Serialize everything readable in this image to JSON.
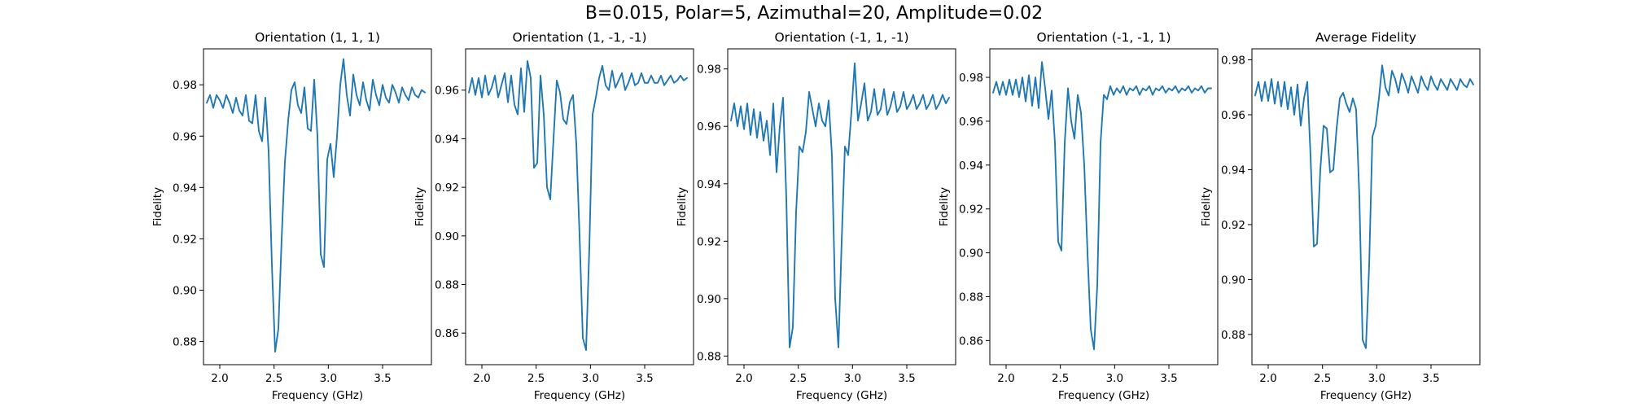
{
  "figure": {
    "suptitle": "B=0.015, Polar=5, Azimuthal=20, Amplitude=0.02"
  },
  "colors": {
    "line": "#1f77b4",
    "axes": "#000000"
  },
  "chart_data": [
    {
      "type": "line",
      "title": "Orientation (1, 1, 1)",
      "xlabel": "Frequency (GHz)",
      "ylabel": "Fidelity",
      "xlim": [
        1.85,
        3.95
      ],
      "ylim": [
        0.871,
        0.994
      ],
      "xticks": [
        2.0,
        2.5,
        3.0,
        3.5
      ],
      "yticks": [
        0.88,
        0.9,
        0.92,
        0.94,
        0.96,
        0.98
      ],
      "ytick_decimals": 2,
      "series": [
        {
          "x": [
            1.88,
            1.91,
            1.94,
            1.97,
            2.0,
            2.03,
            2.06,
            2.09,
            2.12,
            2.15,
            2.18,
            2.21,
            2.24,
            2.27,
            2.3,
            2.33,
            2.36,
            2.39,
            2.42,
            2.45,
            2.48,
            2.51,
            2.54,
            2.57,
            2.6,
            2.63,
            2.66,
            2.69,
            2.72,
            2.75,
            2.78,
            2.81,
            2.84,
            2.87,
            2.9,
            2.93,
            2.96,
            2.99,
            3.02,
            3.05,
            3.08,
            3.11,
            3.14,
            3.17,
            3.2,
            3.23,
            3.26,
            3.29,
            3.32,
            3.35,
            3.38,
            3.41,
            3.44,
            3.47,
            3.5,
            3.53,
            3.56,
            3.59,
            3.62,
            3.65,
            3.68,
            3.71,
            3.74,
            3.77,
            3.8,
            3.83,
            3.86,
            3.89
          ],
          "y": [
            0.973,
            0.976,
            0.971,
            0.976,
            0.974,
            0.971,
            0.976,
            0.973,
            0.969,
            0.975,
            0.97,
            0.968,
            0.976,
            0.966,
            0.965,
            0.976,
            0.962,
            0.958,
            0.975,
            0.954,
            0.91,
            0.876,
            0.885,
            0.92,
            0.95,
            0.966,
            0.978,
            0.981,
            0.972,
            0.969,
            0.979,
            0.963,
            0.962,
            0.982,
            0.96,
            0.914,
            0.909,
            0.951,
            0.957,
            0.944,
            0.96,
            0.98,
            0.99,
            0.976,
            0.968,
            0.984,
            0.976,
            0.972,
            0.981,
            0.974,
            0.97,
            0.982,
            0.976,
            0.972,
            0.98,
            0.975,
            0.973,
            0.98,
            0.977,
            0.973,
            0.979,
            0.976,
            0.974,
            0.979,
            0.976,
            0.975,
            0.978,
            0.977
          ]
        }
      ]
    },
    {
      "type": "line",
      "title": "Orientation (1, -1, -1)",
      "xlabel": "Frequency (GHz)",
      "ylabel": "Fidelity",
      "xlim": [
        1.85,
        3.95
      ],
      "ylim": [
        0.847,
        0.977
      ],
      "xticks": [
        2.0,
        2.5,
        3.0,
        3.5
      ],
      "yticks": [
        0.86,
        0.88,
        0.9,
        0.92,
        0.94,
        0.96
      ],
      "ytick_decimals": 2,
      "series": [
        {
          "x": [
            1.88,
            1.91,
            1.94,
            1.97,
            2.0,
            2.03,
            2.06,
            2.09,
            2.12,
            2.15,
            2.18,
            2.21,
            2.24,
            2.27,
            2.3,
            2.33,
            2.36,
            2.39,
            2.42,
            2.45,
            2.48,
            2.51,
            2.54,
            2.57,
            2.6,
            2.63,
            2.66,
            2.69,
            2.72,
            2.75,
            2.78,
            2.81,
            2.84,
            2.87,
            2.9,
            2.93,
            2.96,
            2.99,
            3.02,
            3.05,
            3.08,
            3.11,
            3.14,
            3.17,
            3.2,
            3.23,
            3.26,
            3.29,
            3.32,
            3.35,
            3.38,
            3.41,
            3.44,
            3.47,
            3.5,
            3.53,
            3.56,
            3.59,
            3.62,
            3.65,
            3.68,
            3.71,
            3.74,
            3.77,
            3.8,
            3.83,
            3.86,
            3.89
          ],
          "y": [
            0.959,
            0.965,
            0.958,
            0.965,
            0.957,
            0.966,
            0.958,
            0.961,
            0.966,
            0.957,
            0.962,
            0.967,
            0.955,
            0.966,
            0.954,
            0.95,
            0.969,
            0.951,
            0.972,
            0.965,
            0.928,
            0.93,
            0.966,
            0.95,
            0.92,
            0.915,
            0.94,
            0.964,
            0.959,
            0.948,
            0.946,
            0.955,
            0.958,
            0.938,
            0.9,
            0.858,
            0.853,
            0.895,
            0.95,
            0.957,
            0.965,
            0.97,
            0.962,
            0.96,
            0.968,
            0.961,
            0.964,
            0.967,
            0.96,
            0.963,
            0.967,
            0.962,
            0.963,
            0.967,
            0.963,
            0.963,
            0.966,
            0.963,
            0.963,
            0.966,
            0.962,
            0.964,
            0.966,
            0.963,
            0.964,
            0.966,
            0.964,
            0.965
          ]
        }
      ]
    },
    {
      "type": "line",
      "title": "Orientation (-1, 1, -1)",
      "xlabel": "Frequency (GHz)",
      "ylabel": "Fidelity",
      "xlim": [
        1.85,
        3.95
      ],
      "ylim": [
        0.877,
        0.987
      ],
      "xticks": [
        2.0,
        2.5,
        3.0,
        3.5
      ],
      "yticks": [
        0.88,
        0.9,
        0.92,
        0.94,
        0.96,
        0.98
      ],
      "ytick_decimals": 2,
      "series": [
        {
          "x": [
            1.88,
            1.91,
            1.94,
            1.97,
            2.0,
            2.03,
            2.06,
            2.09,
            2.12,
            2.15,
            2.18,
            2.21,
            2.24,
            2.27,
            2.3,
            2.33,
            2.36,
            2.39,
            2.42,
            2.45,
            2.48,
            2.51,
            2.54,
            2.57,
            2.6,
            2.63,
            2.66,
            2.69,
            2.72,
            2.75,
            2.78,
            2.81,
            2.84,
            2.87,
            2.9,
            2.93,
            2.96,
            2.99,
            3.02,
            3.05,
            3.08,
            3.11,
            3.14,
            3.17,
            3.2,
            3.23,
            3.26,
            3.29,
            3.32,
            3.35,
            3.38,
            3.41,
            3.44,
            3.47,
            3.5,
            3.53,
            3.56,
            3.59,
            3.62,
            3.65,
            3.68,
            3.71,
            3.74,
            3.77,
            3.8,
            3.83,
            3.86,
            3.89
          ],
          "y": [
            0.962,
            0.968,
            0.96,
            0.967,
            0.959,
            0.968,
            0.957,
            0.966,
            0.956,
            0.965,
            0.955,
            0.962,
            0.95,
            0.968,
            0.944,
            0.96,
            0.97,
            0.935,
            0.883,
            0.89,
            0.93,
            0.953,
            0.951,
            0.958,
            0.972,
            0.966,
            0.96,
            0.968,
            0.962,
            0.96,
            0.969,
            0.95,
            0.9,
            0.883,
            0.92,
            0.953,
            0.95,
            0.965,
            0.982,
            0.962,
            0.968,
            0.975,
            0.962,
            0.965,
            0.973,
            0.964,
            0.966,
            0.973,
            0.964,
            0.967,
            0.972,
            0.965,
            0.967,
            0.972,
            0.966,
            0.968,
            0.971,
            0.966,
            0.968,
            0.971,
            0.966,
            0.968,
            0.971,
            0.966,
            0.968,
            0.971,
            0.968,
            0.97
          ]
        }
      ]
    },
    {
      "type": "line",
      "title": "Orientation (-1, -1, 1)",
      "xlabel": "Frequency (GHz)",
      "ylabel": "Fidelity",
      "xlim": [
        1.85,
        3.95
      ],
      "ylim": [
        0.849,
        0.993
      ],
      "xticks": [
        2.0,
        2.5,
        3.0,
        3.5
      ],
      "yticks": [
        0.86,
        0.88,
        0.9,
        0.92,
        0.94,
        0.96,
        0.98
      ],
      "ytick_decimals": 2,
      "series": [
        {
          "x": [
            1.88,
            1.91,
            1.94,
            1.97,
            2.0,
            2.03,
            2.06,
            2.09,
            2.12,
            2.15,
            2.18,
            2.21,
            2.24,
            2.27,
            2.3,
            2.33,
            2.36,
            2.39,
            2.42,
            2.45,
            2.48,
            2.51,
            2.54,
            2.57,
            2.6,
            2.63,
            2.66,
            2.69,
            2.72,
            2.75,
            2.78,
            2.81,
            2.84,
            2.87,
            2.9,
            2.93,
            2.96,
            2.99,
            3.02,
            3.05,
            3.08,
            3.11,
            3.14,
            3.17,
            3.2,
            3.23,
            3.26,
            3.29,
            3.32,
            3.35,
            3.38,
            3.41,
            3.44,
            3.47,
            3.5,
            3.53,
            3.56,
            3.59,
            3.62,
            3.65,
            3.68,
            3.71,
            3.74,
            3.77,
            3.8,
            3.83,
            3.86,
            3.89
          ],
          "y": [
            0.973,
            0.978,
            0.972,
            0.978,
            0.972,
            0.979,
            0.972,
            0.979,
            0.971,
            0.98,
            0.969,
            0.981,
            0.967,
            0.98,
            0.966,
            0.987,
            0.975,
            0.961,
            0.974,
            0.95,
            0.905,
            0.901,
            0.95,
            0.975,
            0.96,
            0.952,
            0.972,
            0.964,
            0.94,
            0.9,
            0.865,
            0.856,
            0.885,
            0.95,
            0.972,
            0.97,
            0.976,
            0.972,
            0.975,
            0.973,
            0.976,
            0.972,
            0.975,
            0.974,
            0.976,
            0.972,
            0.975,
            0.974,
            0.976,
            0.972,
            0.975,
            0.974,
            0.976,
            0.973,
            0.975,
            0.974,
            0.976,
            0.973,
            0.975,
            0.974,
            0.976,
            0.973,
            0.975,
            0.974,
            0.976,
            0.973,
            0.975,
            0.975
          ]
        }
      ]
    },
    {
      "type": "line",
      "title": "Average Fidelity",
      "xlabel": "Frequency (GHz)",
      "ylabel": "Fidelity",
      "xlim": [
        1.85,
        3.95
      ],
      "ylim": [
        0.869,
        0.984
      ],
      "xticks": [
        2.0,
        2.5,
        3.0,
        3.5
      ],
      "yticks": [
        0.88,
        0.9,
        0.92,
        0.94,
        0.96,
        0.98
      ],
      "ytick_decimals": 2,
      "series": [
        {
          "x": [
            1.88,
            1.91,
            1.94,
            1.97,
            2.0,
            2.03,
            2.06,
            2.09,
            2.12,
            2.15,
            2.18,
            2.21,
            2.24,
            2.27,
            2.3,
            2.33,
            2.36,
            2.39,
            2.42,
            2.45,
            2.48,
            2.51,
            2.54,
            2.57,
            2.6,
            2.63,
            2.66,
            2.69,
            2.72,
            2.75,
            2.78,
            2.81,
            2.84,
            2.87,
            2.9,
            2.93,
            2.96,
            2.99,
            3.02,
            3.05,
            3.08,
            3.11,
            3.14,
            3.17,
            3.2,
            3.23,
            3.26,
            3.29,
            3.32,
            3.35,
            3.38,
            3.41,
            3.44,
            3.47,
            3.5,
            3.53,
            3.56,
            3.59,
            3.62,
            3.65,
            3.68,
            3.71,
            3.74,
            3.77,
            3.8,
            3.83,
            3.86,
            3.89
          ],
          "y": [
            0.967,
            0.972,
            0.965,
            0.972,
            0.965,
            0.973,
            0.964,
            0.972,
            0.963,
            0.972,
            0.962,
            0.97,
            0.96,
            0.971,
            0.956,
            0.966,
            0.972,
            0.945,
            0.912,
            0.913,
            0.94,
            0.956,
            0.955,
            0.939,
            0.94,
            0.955,
            0.966,
            0.968,
            0.964,
            0.961,
            0.966,
            0.962,
            0.93,
            0.878,
            0.875,
            0.905,
            0.952,
            0.956,
            0.966,
            0.978,
            0.97,
            0.967,
            0.976,
            0.973,
            0.968,
            0.975,
            0.972,
            0.968,
            0.974,
            0.971,
            0.968,
            0.974,
            0.971,
            0.969,
            0.974,
            0.971,
            0.969,
            0.973,
            0.971,
            0.969,
            0.973,
            0.971,
            0.969,
            0.973,
            0.971,
            0.97,
            0.973,
            0.971
          ]
        }
      ]
    }
  ]
}
